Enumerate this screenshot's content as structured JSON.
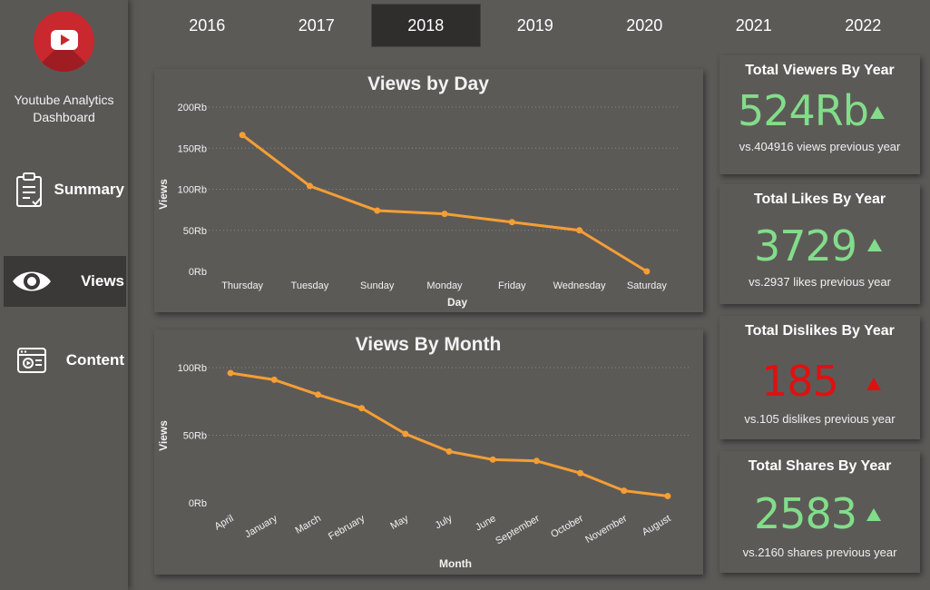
{
  "app": {
    "title": "Youtube Analytics Dashboard"
  },
  "sidebar": {
    "items": [
      {
        "label": "Summary",
        "icon": "clipboard-icon",
        "active": false
      },
      {
        "label": "Views",
        "icon": "eye-icon",
        "active": true
      },
      {
        "label": "Content",
        "icon": "video-window-icon",
        "active": false
      }
    ]
  },
  "years": [
    "2016",
    "2017",
    "2018",
    "2019",
    "2020",
    "2021",
    "2022"
  ],
  "selected_year": "2018",
  "colors": {
    "line": "#f59e35",
    "positive": "#82dd8a",
    "negative": "#e01010"
  },
  "kpis": [
    {
      "title": "Total Viewers By Year",
      "value": "524Rb",
      "sub": "vs.404916 views previous year",
      "trend": "up",
      "status": "positive"
    },
    {
      "title": "Total Likes By Year",
      "value": "3729",
      "sub": "vs.2937 likes previous year",
      "trend": "up",
      "status": "positive"
    },
    {
      "title": "Total Dislikes By Year",
      "value": "185",
      "sub": "vs.105 dislikes previous year",
      "trend": "up",
      "status": "negative"
    },
    {
      "title": "Total Shares By Year",
      "value": "2583",
      "sub": "vs.2160 shares previous year",
      "trend": "up",
      "status": "positive"
    }
  ],
  "chart_data": [
    {
      "type": "line",
      "title": "Views by Day",
      "xlabel": "Day",
      "ylabel": "Views",
      "categories": [
        "Thursday",
        "Tuesday",
        "Sunday",
        "Monday",
        "Friday",
        "Wednesday",
        "Saturday"
      ],
      "values": [
        166,
        104,
        74,
        70,
        60,
        50,
        0
      ],
      "yticks": [
        "0Rb",
        "50Rb",
        "100Rb",
        "150Rb",
        "200Rb"
      ],
      "ylim": [
        0,
        200
      ],
      "grid": true
    },
    {
      "type": "line",
      "title": "Views By Month",
      "xlabel": "Month",
      "ylabel": "Views",
      "categories": [
        "April",
        "January",
        "March",
        "February",
        "May",
        "July",
        "June",
        "September",
        "October",
        "November",
        "August"
      ],
      "values": [
        96,
        91,
        80,
        70,
        51,
        38,
        32,
        31,
        22,
        9,
        5
      ],
      "yticks": [
        "0Rb",
        "50Rb",
        "100Rb"
      ],
      "ylim": [
        0,
        100
      ],
      "grid": true
    }
  ]
}
